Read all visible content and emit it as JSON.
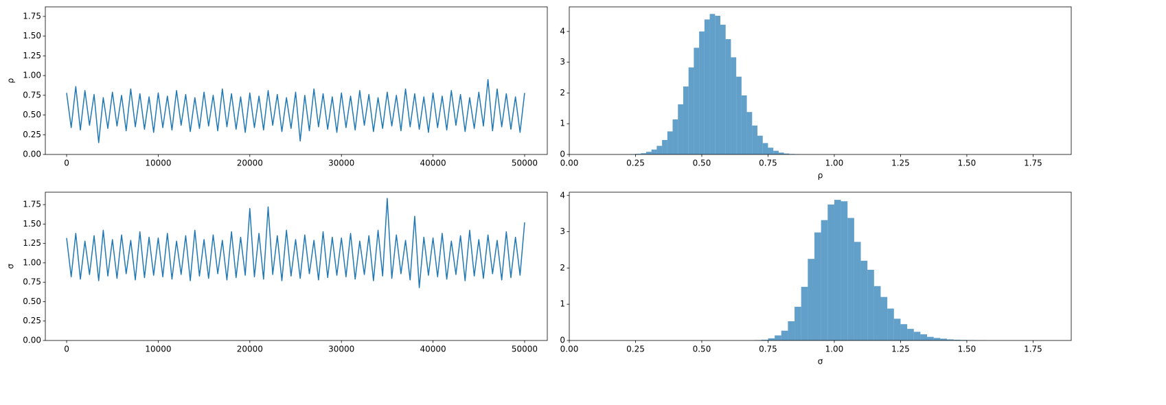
{
  "chart_data": [
    {
      "type": "line",
      "ylabel": "ρ",
      "color": "#1f77b4",
      "x": [
        0,
        500,
        1000,
        1500,
        2000,
        2500,
        3000,
        3500,
        4000,
        4500,
        5000,
        5500,
        6000,
        6500,
        7000,
        7500,
        8000,
        8500,
        9000,
        9500,
        10000,
        10500,
        11000,
        11500,
        12000,
        12500,
        13000,
        13500,
        14000,
        14500,
        15000,
        15500,
        16000,
        16500,
        17000,
        17500,
        18000,
        18500,
        19000,
        19500,
        20000,
        20500,
        21000,
        21500,
        22000,
        22500,
        23000,
        23500,
        24000,
        24500,
        25000,
        25500,
        26000,
        26500,
        27000,
        27500,
        28000,
        28500,
        29000,
        29500,
        30000,
        30500,
        31000,
        31500,
        32000,
        32500,
        33000,
        33500,
        34000,
        34500,
        35000,
        35500,
        36000,
        36500,
        37000,
        37500,
        38000,
        38500,
        39000,
        39500,
        40000,
        40500,
        41000,
        41500,
        42000,
        42500,
        43000,
        43500,
        44000,
        44500,
        45000,
        45500,
        46000,
        46500,
        47000,
        47500,
        48000,
        48500,
        49000,
        49500,
        50000
      ],
      "values": [
        0.78,
        0.34,
        0.86,
        0.31,
        0.81,
        0.37,
        0.76,
        0.15,
        0.72,
        0.33,
        0.79,
        0.36,
        0.75,
        0.3,
        0.83,
        0.35,
        0.77,
        0.32,
        0.73,
        0.28,
        0.78,
        0.34,
        0.74,
        0.31,
        0.81,
        0.37,
        0.76,
        0.29,
        0.72,
        0.33,
        0.79,
        0.36,
        0.75,
        0.3,
        0.83,
        0.35,
        0.77,
        0.32,
        0.73,
        0.28,
        0.78,
        0.34,
        0.74,
        0.31,
        0.81,
        0.37,
        0.76,
        0.29,
        0.72,
        0.33,
        0.79,
        0.17,
        0.75,
        0.3,
        0.83,
        0.35,
        0.77,
        0.32,
        0.73,
        0.28,
        0.78,
        0.34,
        0.74,
        0.31,
        0.81,
        0.37,
        0.76,
        0.29,
        0.72,
        0.33,
        0.79,
        0.36,
        0.75,
        0.3,
        0.83,
        0.35,
        0.77,
        0.32,
        0.73,
        0.28,
        0.78,
        0.34,
        0.74,
        0.31,
        0.81,
        0.37,
        0.76,
        0.29,
        0.72,
        0.33,
        0.79,
        0.36,
        0.95,
        0.3,
        0.83,
        0.35,
        0.77,
        0.32,
        0.73,
        0.28,
        0.78
      ],
      "xlim": [
        -2325,
        52475
      ],
      "xticks": [
        0,
        10000,
        20000,
        30000,
        40000,
        50000
      ],
      "ylim": [
        0,
        1.871
      ],
      "yticks": [
        {
          "value": 0,
          "label": "0.00"
        },
        {
          "value": 0.25,
          "label": "0.25"
        },
        {
          "value": 0.5,
          "label": "0.50"
        },
        {
          "value": 0.75,
          "label": "0.75"
        },
        {
          "value": 1,
          "label": "1.00"
        },
        {
          "value": 1.25,
          "label": "1.25"
        },
        {
          "value": 1.5,
          "label": "1.50"
        },
        {
          "value": 1.75,
          "label": "1.75"
        }
      ]
    },
    {
      "type": "histogram",
      "xlabel": "ρ",
      "color": "#1f77b4",
      "opacity": 0.7,
      "bins": [
        0.15,
        0.17,
        0.19,
        0.21,
        0.23,
        0.25,
        0.27,
        0.29,
        0.31,
        0.33,
        0.35,
        0.37,
        0.39,
        0.41,
        0.43,
        0.45,
        0.47,
        0.49,
        0.51,
        0.53,
        0.55,
        0.57,
        0.59,
        0.61,
        0.63,
        0.65,
        0.67,
        0.69,
        0.71,
        0.73,
        0.75,
        0.77,
        0.79,
        0.81,
        0.83,
        0.85,
        0.87,
        0.89,
        0.91,
        0.93
      ],
      "values": [
        0.0005,
        0.001,
        0.002,
        0.004,
        0.01,
        0.02,
        0.04,
        0.086,
        0.16,
        0.28,
        0.47,
        0.75,
        1.14,
        1.63,
        2.21,
        2.83,
        3.47,
        4.0,
        4.39,
        4.57,
        4.51,
        4.22,
        3.75,
        3.16,
        2.53,
        1.92,
        1.38,
        0.94,
        0.61,
        0.37,
        0.22,
        0.12,
        0.06,
        0.03,
        0.015,
        0.007,
        0.003,
        0.001,
        0.0005
      ],
      "xlim": [
        0,
        1.894
      ],
      "xticks": [
        {
          "value": 0,
          "label": "0.00"
        },
        {
          "value": 0.25,
          "label": "0.25"
        },
        {
          "value": 0.5,
          "label": "0.50"
        },
        {
          "value": 0.75,
          "label": "0.75"
        },
        {
          "value": 1,
          "label": "1.00"
        },
        {
          "value": 1.25,
          "label": "1.25"
        },
        {
          "value": 1.5,
          "label": "1.50"
        },
        {
          "value": 1.75,
          "label": "1.75"
        }
      ],
      "ylim": [
        0,
        4.8
      ],
      "yticks": [
        0,
        1,
        2,
        3,
        4
      ]
    },
    {
      "type": "line",
      "ylabel": "σ",
      "color": "#1f77b4",
      "x": [
        0,
        500,
        1000,
        1500,
        2000,
        2500,
        3000,
        3500,
        4000,
        4500,
        5000,
        5500,
        6000,
        6500,
        7000,
        7500,
        8000,
        8500,
        9000,
        9500,
        10000,
        10500,
        11000,
        11500,
        12000,
        12500,
        13000,
        13500,
        14000,
        14500,
        15000,
        15500,
        16000,
        16500,
        17000,
        17500,
        18000,
        18500,
        19000,
        19500,
        20000,
        20500,
        21000,
        21500,
        22000,
        22500,
        23000,
        23500,
        24000,
        24500,
        25000,
        25500,
        26000,
        26500,
        27000,
        27500,
        28000,
        28500,
        29000,
        29500,
        30000,
        30500,
        31000,
        31500,
        32000,
        32500,
        33000,
        33500,
        34000,
        34500,
        35000,
        35500,
        36000,
        36500,
        37000,
        37500,
        38000,
        38500,
        39000,
        39500,
        40000,
        40500,
        41000,
        41500,
        42000,
        42500,
        43000,
        43500,
        44000,
        44500,
        45000,
        45500,
        46000,
        46500,
        47000,
        47500,
        48000,
        48500,
        49000,
        49500,
        50000
      ],
      "values": [
        1.32,
        0.82,
        1.38,
        0.79,
        1.28,
        0.85,
        1.35,
        0.77,
        1.42,
        0.83,
        1.3,
        0.8,
        1.36,
        0.86,
        1.29,
        0.78,
        1.4,
        0.81,
        1.33,
        0.84,
        1.32,
        0.82,
        1.38,
        0.79,
        1.28,
        0.85,
        1.35,
        0.77,
        1.42,
        0.83,
        1.3,
        0.8,
        1.36,
        0.86,
        1.29,
        0.78,
        1.4,
        0.81,
        1.33,
        0.84,
        1.7,
        0.82,
        1.38,
        0.79,
        1.72,
        0.85,
        1.35,
        0.77,
        1.42,
        0.83,
        1.3,
        0.8,
        1.36,
        0.86,
        1.29,
        0.78,
        1.4,
        0.81,
        1.33,
        0.84,
        1.32,
        0.82,
        1.38,
        0.79,
        1.28,
        0.85,
        1.35,
        0.77,
        1.42,
        0.83,
        1.83,
        0.8,
        1.36,
        0.86,
        1.29,
        0.78,
        1.6,
        0.68,
        1.33,
        0.84,
        1.32,
        0.82,
        1.38,
        0.79,
        1.28,
        0.85,
        1.35,
        0.77,
        1.42,
        0.83,
        1.3,
        0.8,
        1.36,
        0.86,
        1.29,
        0.78,
        1.4,
        0.81,
        1.33,
        0.84,
        1.52
      ],
      "xlim": [
        -2325,
        52475
      ],
      "xticks": [
        0,
        10000,
        20000,
        30000,
        40000,
        50000
      ],
      "ylim": [
        0,
        1.91
      ],
      "yticks": [
        {
          "value": 0,
          "label": "0.00"
        },
        {
          "value": 0.25,
          "label": "0.25"
        },
        {
          "value": 0.5,
          "label": "0.50"
        },
        {
          "value": 0.75,
          "label": "0.75"
        },
        {
          "value": 1,
          "label": "1.00"
        },
        {
          "value": 1.25,
          "label": "1.25"
        },
        {
          "value": 1.5,
          "label": "1.50"
        },
        {
          "value": 1.75,
          "label": "1.75"
        }
      ]
    },
    {
      "type": "histogram",
      "xlabel": "σ",
      "color": "#1f77b4",
      "opacity": 0.7,
      "bins": [
        0.7,
        0.725,
        0.75,
        0.775,
        0.8,
        0.825,
        0.85,
        0.875,
        0.9,
        0.925,
        0.95,
        0.975,
        1.0,
        1.025,
        1.05,
        1.075,
        1.1,
        1.125,
        1.15,
        1.175,
        1.2,
        1.225,
        1.25,
        1.275,
        1.3,
        1.325,
        1.35,
        1.375,
        1.4,
        1.425,
        1.45,
        1.475,
        1.5,
        1.525,
        1.55,
        1.575
      ],
      "values": [
        0.01,
        0.02,
        0.06,
        0.14,
        0.27,
        0.53,
        0.93,
        1.48,
        2.25,
        2.98,
        3.32,
        3.75,
        3.88,
        3.84,
        3.38,
        2.72,
        2.2,
        1.95,
        1.5,
        1.2,
        0.88,
        0.6,
        0.45,
        0.32,
        0.24,
        0.17,
        0.1,
        0.07,
        0.05,
        0.03,
        0.02,
        0.015,
        0.01,
        0.005,
        0.004
      ],
      "xlim": [
        0,
        1.894
      ],
      "xticks": [
        {
          "value": 0,
          "label": "0.00"
        },
        {
          "value": 0.25,
          "label": "0.25"
        },
        {
          "value": 0.5,
          "label": "0.50"
        },
        {
          "value": 0.75,
          "label": "0.75"
        },
        {
          "value": 1,
          "label": "1.00"
        },
        {
          "value": 1.25,
          "label": "1.25"
        },
        {
          "value": 1.5,
          "label": "1.50"
        },
        {
          "value": 1.75,
          "label": "1.75"
        }
      ],
      "ylim": [
        0,
        4.09
      ],
      "yticks": [
        0,
        1,
        2,
        3,
        4
      ]
    }
  ]
}
